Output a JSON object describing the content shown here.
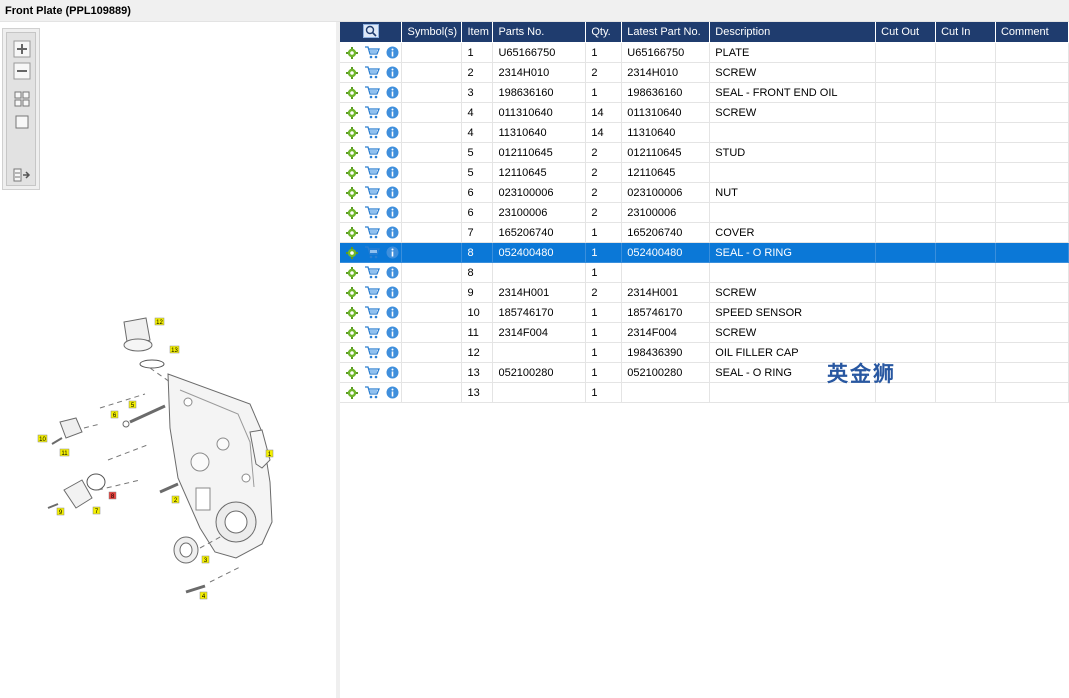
{
  "window": {
    "title": "Front Plate (PPL109889)"
  },
  "toolbar": {
    "buttons": [
      "zoom-in",
      "zoom-out",
      "fit-all",
      "fit-window",
      "show-list"
    ]
  },
  "grid": {
    "columns": [
      "",
      "Symbol(s)",
      "Item",
      "Parts No.",
      "Qty.",
      "Latest Part No.",
      "Description",
      "Cut Out",
      "Cut In",
      "Comment"
    ],
    "selected_index": 10,
    "rows": [
      {
        "item": "1",
        "part": "U65166750",
        "qty": "1",
        "latest": "U65166750",
        "desc": "PLATE"
      },
      {
        "item": "2",
        "part": "2314H010",
        "qty": "2",
        "latest": "2314H010",
        "desc": "SCREW"
      },
      {
        "item": "3",
        "part": "198636160",
        "qty": "1",
        "latest": "198636160",
        "desc": "SEAL - FRONT END OIL"
      },
      {
        "item": "4",
        "part": "011310640",
        "qty": "14",
        "latest": "011310640",
        "desc": "SCREW"
      },
      {
        "item": "4",
        "part": "11310640",
        "qty": "14",
        "latest": "11310640",
        "desc": ""
      },
      {
        "item": "5",
        "part": "012110645",
        "qty": "2",
        "latest": "012110645",
        "desc": "STUD"
      },
      {
        "item": "5",
        "part": "12110645",
        "qty": "2",
        "latest": "12110645",
        "desc": ""
      },
      {
        "item": "6",
        "part": "023100006",
        "qty": "2",
        "latest": "023100006",
        "desc": "NUT"
      },
      {
        "item": "6",
        "part": "23100006",
        "qty": "2",
        "latest": "23100006",
        "desc": ""
      },
      {
        "item": "7",
        "part": "165206740",
        "qty": "1",
        "latest": "165206740",
        "desc": "COVER"
      },
      {
        "item": "8",
        "part": "052400480",
        "qty": "1",
        "latest": "052400480",
        "desc": "SEAL - O RING"
      },
      {
        "item": "8",
        "part": "",
        "qty": "1",
        "latest": "",
        "desc": ""
      },
      {
        "item": "9",
        "part": "2314H001",
        "qty": "2",
        "latest": "2314H001",
        "desc": "SCREW"
      },
      {
        "item": "10",
        "part": "185746170",
        "qty": "1",
        "latest": "185746170",
        "desc": "SPEED SENSOR"
      },
      {
        "item": "11",
        "part": "2314F004",
        "qty": "1",
        "latest": "2314F004",
        "desc": "SCREW"
      },
      {
        "item": "12",
        "part": "",
        "qty": "1",
        "latest": "198436390",
        "desc": "OIL FILLER CAP"
      },
      {
        "item": "13",
        "part": "052100280",
        "qty": "1",
        "latest": "052100280",
        "desc": "SEAL - O RING"
      },
      {
        "item": "13",
        "part": "",
        "qty": "1",
        "latest": "",
        "desc": ""
      }
    ]
  },
  "watermark": "英金狮",
  "drawing": {
    "callouts": [
      "1",
      "2",
      "3",
      "4",
      "5",
      "6",
      "7",
      "8",
      "9",
      "10",
      "11",
      "12",
      "13"
    ],
    "highlighted": "8"
  },
  "colors": {
    "header": "#1f3c6e",
    "selection": "#0b78d7",
    "callout": "#f4f000",
    "callout_hl": "#e8413c"
  }
}
